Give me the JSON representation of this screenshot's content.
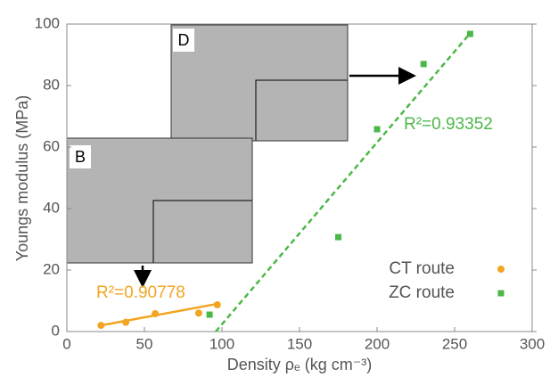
{
  "chart_data": {
    "type": "scatter",
    "x_label": "Density ρₑ (kg cm⁻³)",
    "y_label": "Youngs modulus (MPa)",
    "xlim": [
      0,
      300
    ],
    "xticks": [
      0,
      50,
      100,
      150,
      200,
      250,
      300
    ],
    "ylim": [
      0,
      100
    ],
    "yticks": [
      0,
      20,
      40,
      60,
      80,
      100
    ],
    "legend": "lower right",
    "series": [
      {
        "name": "CT route",
        "color": "#f2a522",
        "marker": "circle",
        "x": [
          22,
          38,
          57,
          85,
          97
        ],
        "values": [
          2,
          3,
          5.8,
          6,
          8.7
        ],
        "fit": {
          "x": [
            22,
            97
          ],
          "values": [
            2,
            9
          ],
          "style": "solid"
        },
        "annotation": "R²=0.90778"
      },
      {
        "name": "ZC route",
        "color": "#4cb848",
        "marker": "square",
        "x": [
          92,
          175,
          200,
          230,
          260
        ],
        "values": [
          5.5,
          30.7,
          65.8,
          87,
          96.8
        ],
        "fit": {
          "x": [
            96,
            260
          ],
          "values": [
            0,
            97
          ],
          "style": "dashed"
        },
        "annotation": "R²=0.93352"
      }
    ],
    "insets": [
      "D",
      "B"
    ]
  }
}
